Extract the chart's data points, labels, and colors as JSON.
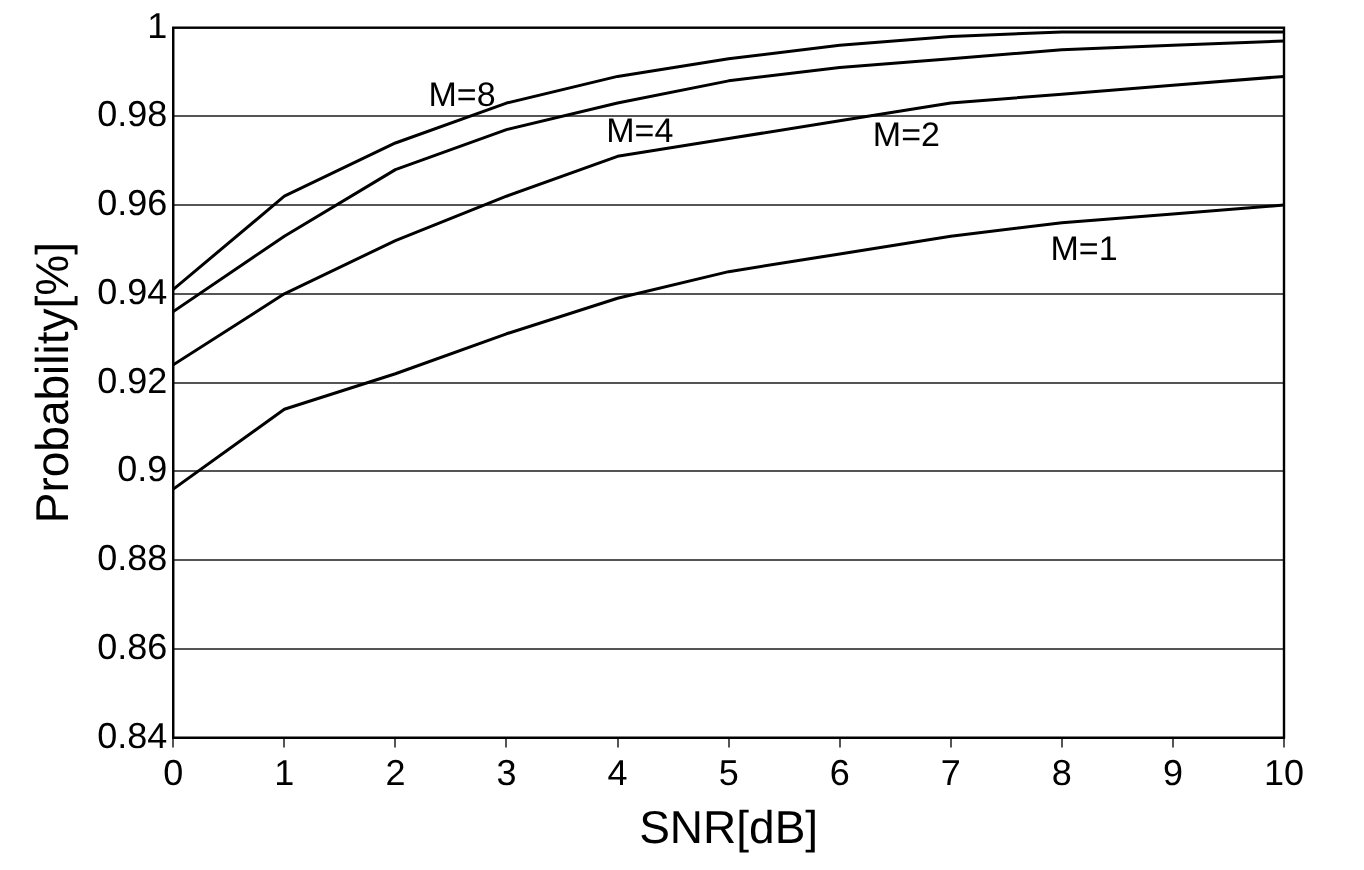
{
  "chart_data": {
    "type": "line",
    "xlabel": "SNR[dB]",
    "ylabel": "Probability[%]",
    "x": [
      0,
      1,
      2,
      3,
      4,
      5,
      6,
      7,
      8,
      9,
      10
    ],
    "series": [
      {
        "name": "M=1",
        "color": "#000000",
        "values": [
          0.896,
          0.914,
          0.922,
          0.931,
          0.939,
          0.945,
          0.949,
          0.953,
          0.956,
          0.958,
          0.96
        ]
      },
      {
        "name": "M=2",
        "color": "#000000",
        "values": [
          0.924,
          0.94,
          0.952,
          0.962,
          0.971,
          0.975,
          0.979,
          0.983,
          0.985,
          0.987,
          0.989
        ]
      },
      {
        "name": "M=4",
        "color": "#000000",
        "values": [
          0.936,
          0.953,
          0.968,
          0.977,
          0.983,
          0.988,
          0.991,
          0.993,
          0.995,
          0.996,
          0.997
        ]
      },
      {
        "name": "M=8",
        "color": "#000000",
        "values": [
          0.941,
          0.962,
          0.974,
          0.983,
          0.989,
          0.993,
          0.996,
          0.998,
          0.999,
          0.999,
          0.999
        ]
      }
    ],
    "xlim": [
      0,
      10
    ],
    "xticks": [
      0,
      1,
      2,
      3,
      4,
      5,
      6,
      7,
      8,
      9,
      10
    ],
    "ylim": [
      0.84,
      1
    ],
    "yticks": [
      0.84,
      0.86,
      0.88,
      0.9,
      0.92,
      0.94,
      0.96,
      0.98,
      1
    ],
    "grid": "y",
    "legend": false,
    "marker": "none",
    "line_style": "solid"
  }
}
